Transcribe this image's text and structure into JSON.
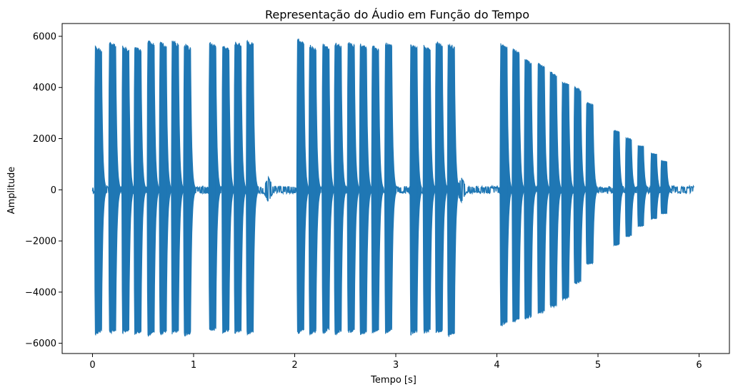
{
  "chart_data": {
    "type": "line",
    "title": "Representação do Áudio em Função do Tempo",
    "xlabel": "Tempo [s]",
    "ylabel": "Amplitude",
    "xlim": [
      -0.3,
      6.3
    ],
    "ylim": [
      -6400,
      6500
    ],
    "grid": false,
    "legend": "none",
    "color": "#1f77b4",
    "xticks": [
      0,
      1,
      2,
      3,
      4,
      5,
      6
    ],
    "yticks": [
      -6000,
      -4000,
      -2000,
      0,
      2000,
      4000,
      6000
    ],
    "xtick_labels": [
      "0",
      "1",
      "2",
      "3",
      "4",
      "5",
      "6"
    ],
    "ytick_labels": [
      "−6000",
      "−4000",
      "−2000",
      "0",
      "2000",
      "4000",
      "6000"
    ],
    "series": [
      {
        "bursts": [
          {
            "t": 0.02,
            "dur": 0.07,
            "pos": 5650,
            "neg": -5700
          },
          {
            "t": 0.16,
            "dur": 0.07,
            "pos": 5850,
            "neg": -5650
          },
          {
            "t": 0.29,
            "dur": 0.07,
            "pos": 5700,
            "neg": -5650
          },
          {
            "t": 0.41,
            "dur": 0.07,
            "pos": 5650,
            "neg": -5700
          },
          {
            "t": 0.54,
            "dur": 0.07,
            "pos": 5900,
            "neg": -5750
          },
          {
            "t": 0.66,
            "dur": 0.07,
            "pos": 5850,
            "neg": -5700
          },
          {
            "t": 0.78,
            "dur": 0.07,
            "pos": 5900,
            "neg": -5700
          },
          {
            "t": 0.9,
            "dur": 0.07,
            "pos": 5750,
            "neg": -5750
          },
          {
            "t": 1.15,
            "dur": 0.07,
            "pos": 5800,
            "neg": -5600
          },
          {
            "t": 1.28,
            "dur": 0.07,
            "pos": 5700,
            "neg": -5650
          },
          {
            "t": 1.4,
            "dur": 0.07,
            "pos": 5850,
            "neg": -5650
          },
          {
            "t": 1.52,
            "dur": 0.07,
            "pos": 5900,
            "neg": -5700
          },
          {
            "t": 2.02,
            "dur": 0.07,
            "pos": 5950,
            "neg": -5650
          },
          {
            "t": 2.14,
            "dur": 0.07,
            "pos": 5700,
            "neg": -5700
          },
          {
            "t": 2.27,
            "dur": 0.07,
            "pos": 5750,
            "neg": -5650
          },
          {
            "t": 2.39,
            "dur": 0.07,
            "pos": 5800,
            "neg": -5700
          },
          {
            "t": 2.52,
            "dur": 0.07,
            "pos": 5850,
            "neg": -5650
          },
          {
            "t": 2.64,
            "dur": 0.07,
            "pos": 5750,
            "neg": -5700
          },
          {
            "t": 2.76,
            "dur": 0.07,
            "pos": 5700,
            "neg": -5650
          },
          {
            "t": 2.89,
            "dur": 0.07,
            "pos": 5850,
            "neg": -5650
          },
          {
            "t": 3.14,
            "dur": 0.07,
            "pos": 5750,
            "neg": -5700
          },
          {
            "t": 3.27,
            "dur": 0.07,
            "pos": 5700,
            "neg": -5650
          },
          {
            "t": 3.39,
            "dur": 0.07,
            "pos": 5850,
            "neg": -5650
          },
          {
            "t": 3.51,
            "dur": 0.07,
            "pos": 5800,
            "neg": -5800
          },
          {
            "t": 4.03,
            "dur": 0.07,
            "pos": 5750,
            "neg": -5350
          },
          {
            "t": 4.15,
            "dur": 0.07,
            "pos": 5550,
            "neg": -5200
          },
          {
            "t": 4.27,
            "dur": 0.07,
            "pos": 5150,
            "neg": -5100
          },
          {
            "t": 4.4,
            "dur": 0.07,
            "pos": 5000,
            "neg": -4900
          },
          {
            "t": 4.52,
            "dur": 0.07,
            "pos": 4650,
            "neg": -4650
          },
          {
            "t": 4.64,
            "dur": 0.07,
            "pos": 4300,
            "neg": -4350
          },
          {
            "t": 4.76,
            "dur": 0.07,
            "pos": 4050,
            "neg": -3700
          },
          {
            "t": 4.88,
            "dur": 0.07,
            "pos": 3450,
            "neg": -2950
          },
          {
            "t": 5.15,
            "dur": 0.06,
            "pos": 2350,
            "neg": -2200
          },
          {
            "t": 5.27,
            "dur": 0.06,
            "pos": 2050,
            "neg": -1850
          },
          {
            "t": 5.39,
            "dur": 0.06,
            "pos": 1750,
            "neg": -1450
          },
          {
            "t": 5.52,
            "dur": 0.06,
            "pos": 1450,
            "neg": -1150
          },
          {
            "t": 5.62,
            "dur": 0.06,
            "pos": 1150,
            "neg": -950
          }
        ],
        "small_bumps": [
          {
            "t": 1.74,
            "amp": 480
          },
          {
            "t": 3.65,
            "amp": 480
          }
        ],
        "tmin": 0.0,
        "tmax": 5.95
      }
    ]
  }
}
